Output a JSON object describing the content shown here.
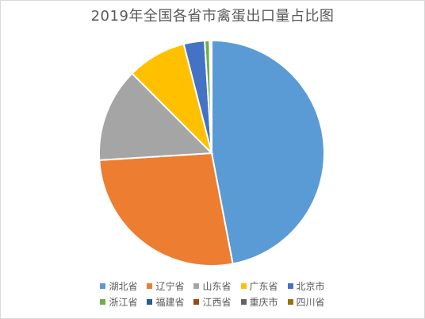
{
  "chart_data": {
    "type": "pie",
    "title": "2019年全国各省市禽蛋出口量占比图",
    "slices": [
      {
        "name": "湖北省",
        "value": 47.0,
        "color": "#5B9BD5"
      },
      {
        "name": "辽宁省",
        "value": 27.0,
        "color": "#ED7D31"
      },
      {
        "name": "山东省",
        "value": 13.5,
        "color": "#A5A5A5"
      },
      {
        "name": "广东省",
        "value": 8.5,
        "color": "#FFC000"
      },
      {
        "name": "北京市",
        "value": 3.0,
        "color": "#4472C4"
      },
      {
        "name": "浙江省",
        "value": 0.7,
        "color": "#70AD47"
      },
      {
        "name": "福建省",
        "value": 0.15,
        "color": "#255E91"
      },
      {
        "name": "江西省",
        "value": 0.1,
        "color": "#9E480E"
      },
      {
        "name": "重庆市",
        "value": 0.03,
        "color": "#636363"
      },
      {
        "name": "四川省",
        "value": 0.02,
        "color": "#997300"
      }
    ],
    "legend": "bottom"
  }
}
